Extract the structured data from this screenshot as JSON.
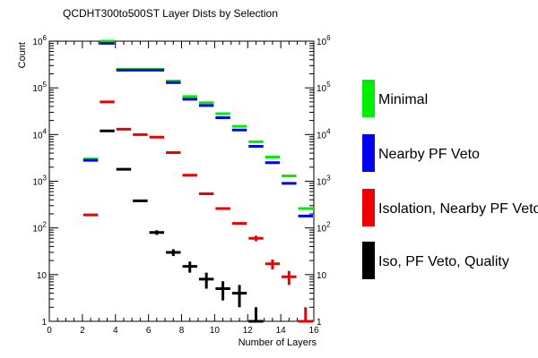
{
  "chart_data": {
    "type": "scatter",
    "title": "QCDHT300to500ST Layer Dists by Selection",
    "xlabel": "Number of Layers",
    "ylabel": "Count",
    "xlim": [
      0,
      16
    ],
    "ylim": [
      1,
      1000000
    ],
    "yscale": "log",
    "x_ticks": [
      0,
      2,
      4,
      6,
      8,
      10,
      12,
      14,
      16
    ],
    "y_ticks": [
      {
        "value": 1,
        "base": "1",
        "exp": ""
      },
      {
        "value": 10,
        "base": "10",
        "exp": ""
      },
      {
        "value": 100,
        "base": "10",
        "exp": "2"
      },
      {
        "value": 1000,
        "base": "10",
        "exp": "3"
      },
      {
        "value": 10000,
        "base": "10",
        "exp": "4"
      },
      {
        "value": 100000,
        "base": "10",
        "exp": "5"
      },
      {
        "value": 1000000,
        "base": "10",
        "exp": "6"
      }
    ],
    "grid": false,
    "legend_position": "right",
    "series": [
      {
        "name": "Minimal",
        "color": "#00ee00",
        "points": [
          {
            "x0": 2,
            "x1": 3,
            "y": 3000
          },
          {
            "x0": 3,
            "x1": 4,
            "y": 1000000
          },
          {
            "x0": 4,
            "x1": 7,
            "y": 250000
          },
          {
            "x0": 7,
            "x1": 8,
            "y": 140000
          },
          {
            "x0": 8,
            "x1": 9,
            "y": 65000
          },
          {
            "x0": 9,
            "x1": 10,
            "y": 48000
          },
          {
            "x0": 10,
            "x1": 11,
            "y": 28000
          },
          {
            "x0": 11,
            "x1": 12,
            "y": 15000
          },
          {
            "x0": 12,
            "x1": 13,
            "y": 7000
          },
          {
            "x0": 13,
            "x1": 14,
            "y": 3300
          },
          {
            "x0": 14,
            "x1": 15,
            "y": 1300
          },
          {
            "x0": 15,
            "x1": 16,
            "y": 260
          }
        ]
      },
      {
        "name": "Nearby PF Veto",
        "color": "#0000ee",
        "points": [
          {
            "x0": 2,
            "x1": 3,
            "y": 2800
          },
          {
            "x0": 3,
            "x1": 4,
            "y": 900000
          },
          {
            "x0": 4,
            "x1": 7,
            "y": 240000
          },
          {
            "x0": 7,
            "x1": 8,
            "y": 130000
          },
          {
            "x0": 8,
            "x1": 9,
            "y": 57000
          },
          {
            "x0": 9,
            "x1": 10,
            "y": 42000
          },
          {
            "x0": 10,
            "x1": 11,
            "y": 23000
          },
          {
            "x0": 11,
            "x1": 12,
            "y": 12500
          },
          {
            "x0": 12,
            "x1": 13,
            "y": 5600
          },
          {
            "x0": 13,
            "x1": 14,
            "y": 2500
          },
          {
            "x0": 14,
            "x1": 15,
            "y": 900
          },
          {
            "x0": 15,
            "x1": 16,
            "y": 180
          }
        ]
      },
      {
        "name": "Isolation, Nearby PF Veto",
        "color": "#ee0000",
        "points": [
          {
            "x0": 2,
            "x1": 3,
            "y": 190,
            "err": 0
          },
          {
            "x0": 3,
            "x1": 4,
            "y": 50000,
            "err": 0
          },
          {
            "x0": 4,
            "x1": 5,
            "y": 13000,
            "err": 0
          },
          {
            "x0": 5,
            "x1": 6,
            "y": 10000,
            "err": 0
          },
          {
            "x0": 6,
            "x1": 7,
            "y": 8800,
            "err": 0
          },
          {
            "x0": 7,
            "x1": 8,
            "y": 4100,
            "err": 0
          },
          {
            "x0": 8,
            "x1": 9,
            "y": 1350,
            "err": 0
          },
          {
            "x0": 9,
            "x1": 10,
            "y": 540,
            "err": 0
          },
          {
            "x0": 10,
            "x1": 11,
            "y": 260,
            "err": 0
          },
          {
            "x0": 11,
            "x1": 12,
            "y": 125,
            "err": 0
          },
          {
            "x0": 12,
            "x1": 13,
            "y": 60,
            "err": 8
          },
          {
            "x0": 13,
            "x1": 14,
            "y": 17,
            "err": 4
          },
          {
            "x0": 14,
            "x1": 15,
            "y": 9,
            "err": 3
          },
          {
            "x0": 15,
            "x1": 16,
            "y": 1,
            "err": 1
          }
        ]
      },
      {
        "name": "Iso, PF Veto, Quality",
        "color": "#000000",
        "points": [
          {
            "x0": 3,
            "x1": 4,
            "y": 12000,
            "err": 0
          },
          {
            "x0": 4,
            "x1": 5,
            "y": 1800,
            "err": 0
          },
          {
            "x0": 5,
            "x1": 6,
            "y": 380,
            "err": 0
          },
          {
            "x0": 6,
            "x1": 7,
            "y": 80,
            "err": 9
          },
          {
            "x0": 7,
            "x1": 8,
            "y": 30,
            "err": 5
          },
          {
            "x0": 8,
            "x1": 9,
            "y": 15,
            "err": 4
          },
          {
            "x0": 9,
            "x1": 10,
            "y": 8,
            "err": 3
          },
          {
            "x0": 10,
            "x1": 11,
            "y": 5,
            "err": 2.2
          },
          {
            "x0": 11,
            "x1": 12,
            "y": 4,
            "err": 2
          },
          {
            "x0": 12,
            "x1": 13,
            "y": 1,
            "err": 1
          }
        ]
      }
    ]
  }
}
